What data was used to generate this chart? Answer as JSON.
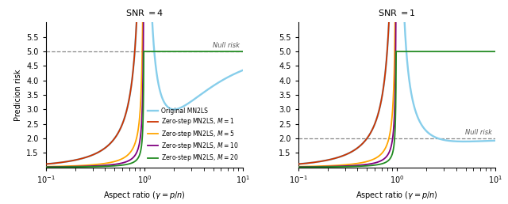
{
  "snr_values": [
    4,
    1
  ],
  "ylim": [
    1.0,
    6.0
  ],
  "xlim": [
    0.1,
    10.0
  ],
  "null_risk_snr4": 5.0,
  "null_risk_snr1": 2.0,
  "colors": {
    "original": "#87CEEB",
    "M1": "#CC3300",
    "M5": "#FFA500",
    "M10": "#800080",
    "M20": "#228B22"
  },
  "legend_labels": [
    "Original MN2LS",
    "Zero-step MN2LS, $M = 1$",
    "Zero-step MN2LS, $M = 5$",
    "Zero-step MN2LS, $M = 10$",
    "Zero-step MN2LS, $M = 20$"
  ],
  "xlabel": "Aspect ratio ($\\gamma = p/n$)",
  "ylabel": "Predicion risk",
  "title_snr4": "SNR $= 4$",
  "title_snr1": "SNR $= 1$",
  "null_risk_label": "Null risk",
  "linewidth": 1.3,
  "yticks": [
    1.5,
    2.0,
    2.5,
    3.0,
    3.5,
    4.0,
    4.5,
    5.0,
    5.5
  ]
}
